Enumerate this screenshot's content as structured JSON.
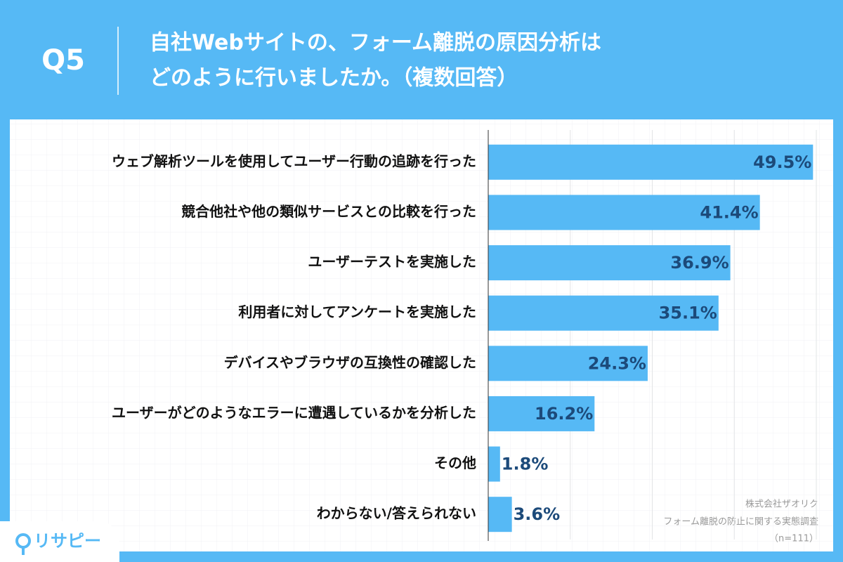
{
  "chart_data": {
    "type": "bar",
    "orientation": "horizontal",
    "label": "Q5",
    "title": [
      "自社Webサイトの、フォーム離脱の原因分析は",
      "どのように行いましたか。（複数回答）"
    ],
    "categories": [
      "ウェブ解析ツールを使用してユーザー行動の追跡を行った",
      "競合他社や他の類似サービスとの比較を行った",
      "ユーザーテストを実施した",
      "利用者に対してアンケートを実施した",
      "デバイスやブラウザの互換性の確認した",
      "ユーザーがどのようなエラーに遭遇しているかを分析した",
      "その他",
      "わからない/答えられない"
    ],
    "values": [
      49.5,
      41.4,
      36.9,
      35.1,
      24.3,
      16.2,
      1.8,
      3.6
    ],
    "value_labels": [
      "49.5%",
      "41.4%",
      "36.9%",
      "35.1%",
      "24.3%",
      "16.2%",
      "1.8%",
      "3.6%"
    ],
    "color": "#56b9f5",
    "xlim": [
      0,
      50
    ],
    "xticks": [
      0,
      12.5,
      25,
      37.5,
      50
    ],
    "grid": true,
    "notes": [
      "株式会社ザオリク",
      "フォーム離脱の防止に関する実態調査",
      "（n=111）"
    ],
    "brand": "リサピー"
  }
}
